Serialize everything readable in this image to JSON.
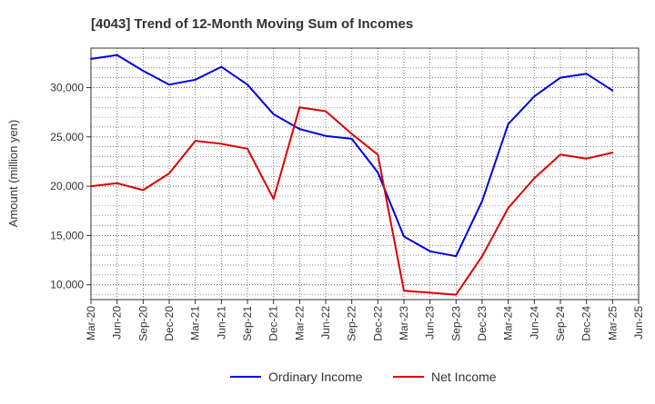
{
  "chart_data": {
    "type": "line",
    "title": "[4043]  Trend of 12-Month Moving Sum of Incomes",
    "xlabel": "",
    "ylabel": "Amount (million yen)",
    "ylim": [
      8500,
      34000
    ],
    "yticks": [
      10000,
      15000,
      20000,
      25000,
      30000
    ],
    "ytick_labels": [
      "10,000",
      "15,000",
      "20,000",
      "25,000",
      "30,000"
    ],
    "categories": [
      "Mar-20",
      "Jun-20",
      "Sep-20",
      "Dec-20",
      "Mar-21",
      "Jun-21",
      "Sep-21",
      "Dec-21",
      "Mar-22",
      "Jun-22",
      "Sep-22",
      "Dec-22",
      "Mar-23",
      "Jun-23",
      "Sep-23",
      "Dec-23",
      "Mar-24",
      "Jun-24",
      "Sep-24",
      "Dec-24",
      "Mar-25",
      "Jun-25"
    ],
    "grid": true,
    "legend_position": "bottom-center",
    "series": [
      {
        "name": "Ordinary Income",
        "color": "#0000dd",
        "values": [
          32900,
          33300,
          31700,
          30300,
          30800,
          32100,
          30300,
          27300,
          25800,
          25100,
          24800,
          21400,
          14900,
          13400,
          12900,
          18500,
          26300,
          29100,
          31000,
          31400,
          29700,
          null
        ]
      },
      {
        "name": "Net Income",
        "color": "#dd0000",
        "values": [
          20000,
          20300,
          19600,
          21300,
          24600,
          24300,
          23800,
          18700,
          28000,
          27600,
          25300,
          23200,
          9400,
          9200,
          9000,
          12900,
          17800,
          20800,
          23200,
          22800,
          23400,
          null
        ]
      }
    ]
  }
}
